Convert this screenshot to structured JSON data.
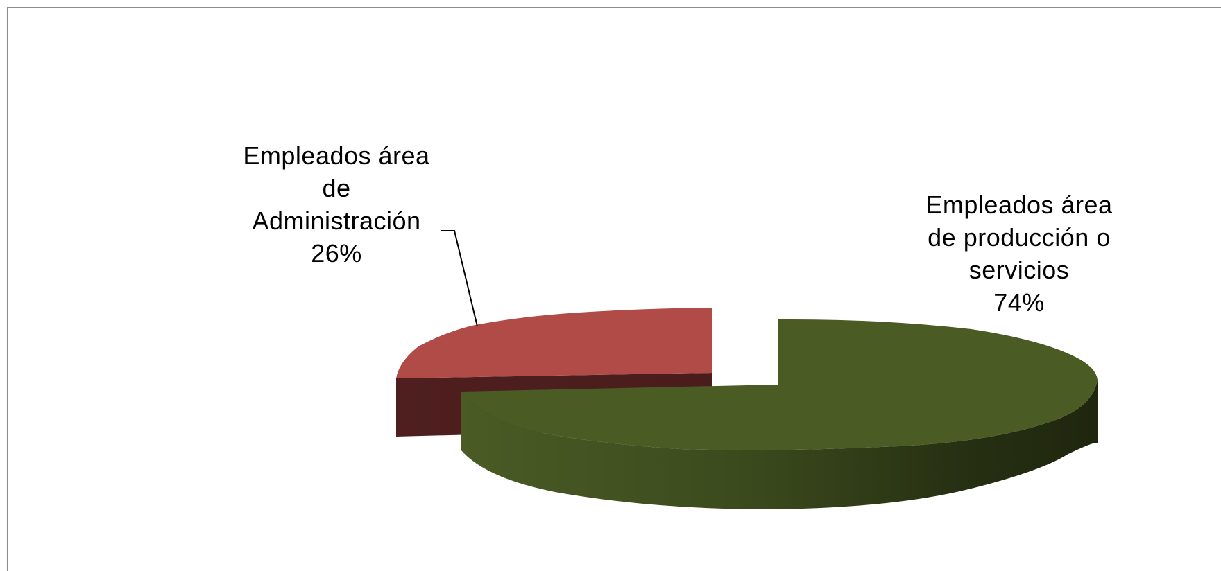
{
  "chart_data": {
    "type": "pie",
    "variant": "3d-exploded",
    "title": "",
    "slices": [
      {
        "label_lines": [
          "Empleados área",
          "de",
          "Administración"
        ],
        "percent_label": "26%",
        "value": 26,
        "color": "#b04b47"
      },
      {
        "label_lines": [
          "Empleados área",
          "de producción o",
          "servicios"
        ],
        "percent_label": "74%",
        "value": 74,
        "color": "#4a5b24"
      }
    ],
    "legend": "none"
  }
}
